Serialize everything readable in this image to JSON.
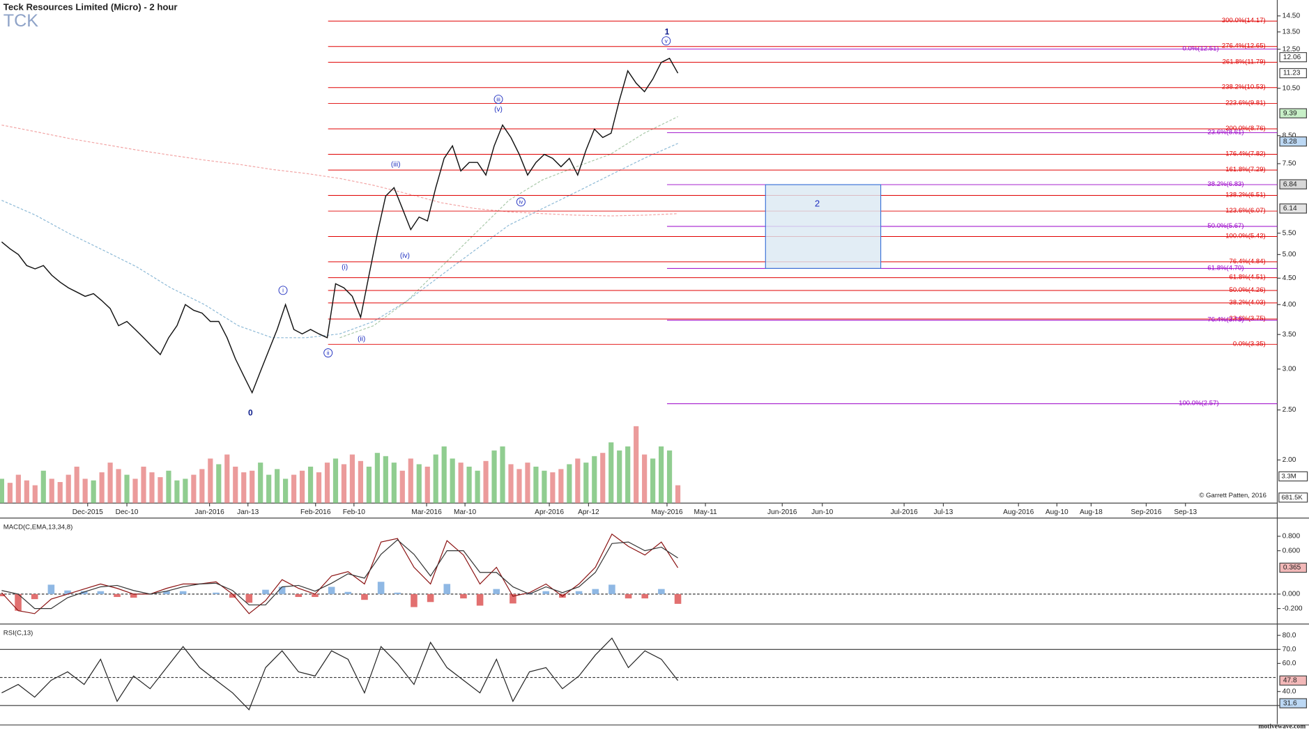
{
  "chart_data": [
    {
      "type": "line",
      "title": "Teck Resources Limited (Micro) - 2 hour",
      "subtitle": "TCK",
      "copyright": "© Garrett Patten, 2016",
      "log_scale": true,
      "color": "#111111",
      "ylim": [
        1.65,
        15.45
      ],
      "yticks": [
        {
          "value": 14.5,
          "label": "14.50"
        },
        {
          "value": 13.5,
          "label": "13.50"
        },
        {
          "value": 12.5,
          "label": "12.50"
        },
        {
          "value": 10.5,
          "label": "10.50"
        },
        {
          "value": 8.5,
          "label": "8.50"
        },
        {
          "value": 7.5,
          "label": "7.50"
        },
        {
          "value": 5.5,
          "label": "5.50"
        },
        {
          "value": 5,
          "label": "5.00"
        },
        {
          "value": 4.5,
          "label": "4.50"
        },
        {
          "value": 4,
          "label": "4.00"
        },
        {
          "value": 3.5,
          "label": "3.50"
        },
        {
          "value": 3,
          "label": "3.00"
        },
        {
          "value": 2.5,
          "label": "2.50"
        },
        {
          "value": 2,
          "label": "2.00"
        }
      ],
      "x_labels": [
        "Dec-2015",
        "Dec-10",
        "Jan-2016",
        "Jan-13",
        "Feb-2016",
        "Feb-10",
        "Mar-2016",
        "Mar-10",
        "Apr-2016",
        "Apr-12",
        "May-2016",
        "May-11",
        "Jun-2016",
        "Jun-10",
        "Jul-2016",
        "Jul-13",
        "Aug-2016",
        "Aug-10",
        "Aug-18",
        "Sep-2016",
        "Sep-13"
      ],
      "values": [
        5.29,
        5.13,
        5.0,
        4.76,
        4.69,
        4.76,
        4.56,
        4.42,
        4.31,
        4.23,
        4.15,
        4.2,
        4.07,
        3.93,
        3.64,
        3.71,
        3.58,
        3.45,
        3.32,
        3.2,
        3.45,
        3.64,
        4.0,
        3.9,
        3.85,
        3.71,
        3.71,
        3.45,
        3.14,
        2.91,
        2.7,
        2.97,
        3.26,
        3.58,
        4.0,
        3.58,
        3.51,
        3.58,
        3.51,
        3.45,
        4.39,
        4.31,
        4.15,
        3.78,
        4.56,
        5.49,
        6.49,
        6.74,
        6.14,
        5.59,
        5.91,
        5.81,
        6.74,
        7.68,
        8.12,
        7.26,
        7.54,
        7.54,
        7.13,
        8.12,
        8.91,
        8.43,
        7.82,
        7.13,
        7.54,
        7.82,
        7.68,
        7.4,
        7.68,
        7.13,
        7.97,
        8.75,
        8.43,
        8.59,
        9.96,
        11.35,
        10.74,
        10.34,
        10.94,
        11.78,
        12.0,
        11.23
      ],
      "moving_averages": [
        {
          "color": "#f2a4a4",
          "values": [
            8.91,
            8.65,
            8.39,
            8.18,
            7.97,
            7.79,
            7.62,
            7.48,
            7.31,
            7.18,
            7.02,
            6.81,
            6.56,
            6.3,
            6.14,
            6.05,
            6.0,
            5.96,
            5.94,
            5.96,
            6.0
          ]
        },
        {
          "color": "#8cb9d6",
          "values": [
            6.37,
            5.96,
            5.49,
            5.1,
            4.73,
            4.31,
            4.0,
            3.64,
            3.45,
            3.45,
            3.51,
            3.71,
            4.07,
            4.56,
            5.1,
            5.7,
            6.14,
            6.61,
            7.13,
            7.68,
            8.21
          ]
        },
        {
          "color": "#a8c8a8",
          "values": [
            null,
            null,
            null,
            null,
            null,
            null,
            null,
            null,
            null,
            null,
            3.45,
            3.64,
            4.07,
            4.73,
            5.49,
            6.37,
            6.98,
            7.4,
            7.82,
            8.59,
            9.25
          ]
        }
      ],
      "price_tags": [
        {
          "value": 12.06,
          "color": "#ffffff"
        },
        {
          "value": 11.23,
          "color": "#ffffff"
        },
        {
          "value": 9.39,
          "color": "#c8f0c8"
        },
        {
          "value": 8.28,
          "color": "#bcd8f4"
        },
        {
          "value": 6.84,
          "color": "#d8d8d8"
        },
        {
          "value": 6.14,
          "color": "#e4e4e4"
        }
      ],
      "fib_extension": {
        "color": "#e00000",
        "levels": [
          {
            "label": "300.0%(14.17)",
            "value": 14.17
          },
          {
            "label": "276.4%(12.65)",
            "value": 12.65
          },
          {
            "label": "261.8%(11.79)",
            "value": 11.79
          },
          {
            "label": "238.2%(10.53)",
            "value": 10.53
          },
          {
            "label": "223.6%(9.81)",
            "value": 9.81
          },
          {
            "label": "200.0%(8.76)",
            "value": 8.76
          },
          {
            "label": "176.4%(7.82)",
            "value": 7.82
          },
          {
            "label": "161.8%(7.29)",
            "value": 7.29
          },
          {
            "label": "138.2%(6.51)",
            "value": 6.51
          },
          {
            "label": "123.6%(6.07)",
            "value": 6.07
          },
          {
            "label": "100.0%(5.42)",
            "value": 5.42
          },
          {
            "label": "76.4%(4.84)",
            "value": 4.84
          },
          {
            "label": "61.8%(4.51)",
            "value": 4.51
          },
          {
            "label": "50.0%(4.26)",
            "value": 4.26
          },
          {
            "label": "38.2%(4.03)",
            "value": 4.03
          },
          {
            "label": "23.6%(3.75)",
            "value": 3.75
          },
          {
            "label": "0.0%(3.35)",
            "value": 3.35
          }
        ]
      },
      "fib_retracement": {
        "color": "#9a00c8",
        "levels": [
          {
            "label": "0.0%(12.51)",
            "value": 12.51
          },
          {
            "label": "23.6%(8.61)",
            "value": 8.61
          },
          {
            "label": "38.2%(6.83)",
            "value": 6.83
          },
          {
            "label": "50.0%(5.67)",
            "value": 5.67
          },
          {
            "label": "61.8%(4.70)",
            "value": 4.7
          },
          {
            "label": "76.4%(3.73)",
            "value": 3.73
          },
          {
            "label": "100.0%(2.57)",
            "value": 2.57
          }
        ]
      },
      "waves": [
        {
          "text": "0"
        },
        {
          "text": "i",
          "circled": true
        },
        {
          "text": "ii",
          "circled": true
        },
        {
          "text": "(i)"
        },
        {
          "text": "(ii)"
        },
        {
          "text": "(iii)"
        },
        {
          "text": "(iv)"
        },
        {
          "text": "iii",
          "circled": true
        },
        {
          "text": "(v)"
        },
        {
          "text": "iv",
          "circled": true
        },
        {
          "text": "v",
          "circled": true
        },
        {
          "text": "1"
        },
        {
          "text": "2"
        }
      ],
      "volume": {
        "ylim": [
          0,
          10000000
        ],
        "values": [
          3000000,
          2500000,
          3500000,
          2800000,
          2200000,
          4000000,
          3000000,
          2600000,
          3500000,
          4500000,
          3000000,
          2800000,
          3800000,
          5000000,
          4200000,
          3500000,
          3000000,
          4500000,
          3800000,
          3200000,
          4000000,
          2800000,
          3000000,
          3500000,
          4200000,
          5500000,
          4800000,
          6000000,
          4500000,
          3800000,
          4000000,
          5000000,
          3500000,
          4200000,
          3000000,
          3500000,
          4000000,
          4500000,
          3800000,
          5000000,
          5500000,
          4800000,
          6000000,
          5200000,
          4500000,
          6200000,
          5800000,
          5000000,
          4000000,
          5500000,
          4800000,
          4500000,
          6000000,
          7000000,
          5500000,
          5000000,
          4500000,
          4000000,
          5200000,
          6500000,
          7000000,
          4800000,
          4200000,
          5000000,
          4500000,
          4000000,
          3800000,
          4200000,
          4800000,
          5500000,
          5000000,
          5800000,
          6200000,
          7500000,
          6500000,
          7000000,
          9500000,
          6000000,
          5500000,
          7000000,
          6500000,
          2200000
        ],
        "tags": [
          {
            "value": 3300000,
            "label": "3.3M"
          },
          {
            "value": 681500,
            "label": "681.5K"
          }
        ]
      }
    },
    {
      "type": "macd",
      "title": "MACD(C,EMA,13,34,8)",
      "ylim": [
        -0.38,
        1.04
      ],
      "yticks": [
        {
          "value": 0.8,
          "label": "0.800"
        },
        {
          "value": 0.6,
          "label": "0.600"
        },
        {
          "value": 0,
          "label": "0.000",
          "line": "dashed"
        },
        {
          "value": -0.2,
          "label": "-0.200"
        }
      ],
      "series": [
        {
          "color": "#8a1010",
          "values": [
            0.02,
            -0.23,
            -0.27,
            -0.07,
            0,
            0.07,
            0.14,
            0.08,
            0,
            0,
            0.08,
            0.14,
            0.14,
            0.17,
            0,
            -0.27,
            -0.09,
            0.2,
            0.08,
            0,
            0.25,
            0.31,
            0.14,
            0.72,
            0.77,
            0.37,
            0.14,
            0.74,
            0.54,
            0.14,
            0.37,
            -0.03,
            0.02,
            0.14,
            -0.03,
            0.14,
            0.37,
            0.83,
            0.66,
            0.54,
            0.72,
            0.365
          ]
        },
        {
          "color": "#333333",
          "values": [
            0.05,
            0.0,
            -0.2,
            -0.2,
            -0.05,
            0.03,
            0.1,
            0.12,
            0.05,
            0.0,
            0.04,
            0.1,
            0.14,
            0.15,
            0.05,
            -0.15,
            -0.15,
            0.1,
            0.12,
            0.04,
            0.15,
            0.28,
            0.22,
            0.55,
            0.75,
            0.55,
            0.25,
            0.6,
            0.6,
            0.3,
            0.3,
            0.1,
            0.0,
            0.1,
            0.02,
            0.1,
            0.3,
            0.7,
            0.72,
            0.6,
            0.65,
            0.5
          ]
        }
      ],
      "histogram": [
        -0.03,
        -0.23,
        -0.07,
        0.13,
        0.05,
        0.04,
        0.04,
        -0.04,
        -0.05,
        0,
        0.04,
        0.04,
        0,
        0.02,
        -0.05,
        -0.12,
        0.06,
        0.1,
        -0.04,
        -0.04,
        0.1,
        0.03,
        -0.08,
        0.17,
        0.02,
        -0.18,
        -0.11,
        0.14,
        -0.06,
        -0.16,
        0.07,
        -0.13,
        0.02,
        0.04,
        -0.05,
        0.04,
        0.07,
        0.13,
        -0.06,
        -0.06,
        0.07,
        -0.135
      ],
      "tag": 0.365
    },
    {
      "type": "rsi",
      "title": "RSI(C,13)",
      "color": "#222222",
      "ylim": [
        16.7,
        85.7
      ],
      "yticks": [
        {
          "value": 80,
          "label": "80.0"
        },
        {
          "value": 70,
          "label": "70.0",
          "line": "solid"
        },
        {
          "value": 60,
          "label": "60.0"
        },
        {
          "value": 40,
          "label": "40.0"
        },
        {
          "value": 30,
          "label": "30.0",
          "line": "solid"
        }
      ],
      "midline": 50,
      "values": [
        39,
        45,
        36,
        48,
        54,
        45,
        63,
        33,
        51,
        42,
        57,
        72,
        57,
        48,
        39,
        27,
        57,
        69,
        54,
        51,
        69,
        63,
        39,
        72,
        60,
        45,
        75,
        57,
        48,
        39,
        63,
        33,
        54,
        57,
        42,
        51,
        66,
        78,
        57,
        69,
        63,
        47.8
      ],
      "tags": [
        47.8,
        31.6
      ]
    }
  ],
  "footer": "motivewave.com"
}
